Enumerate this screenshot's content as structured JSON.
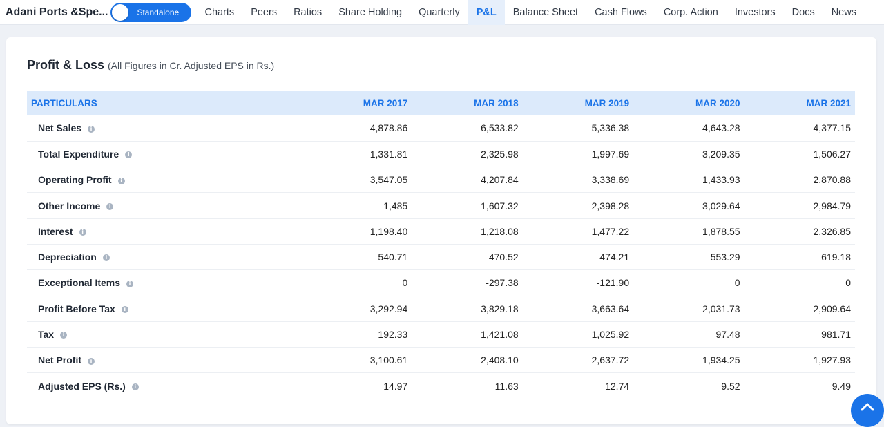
{
  "header": {
    "company": "Adani Ports &Spe...",
    "toggle_label": "Standalone",
    "tabs": [
      "Charts",
      "Peers",
      "Ratios",
      "Share Holding",
      "Quarterly",
      "P&L",
      "Balance Sheet",
      "Cash Flows",
      "Corp. Action",
      "Investors",
      "Docs",
      "News"
    ],
    "active_tab": "P&L"
  },
  "section": {
    "title": "Profit & Loss",
    "subtitle": "(All Figures in Cr. Adjusted EPS in Rs.)"
  },
  "table": {
    "headers": [
      "PARTICULARS",
      "MAR 2017",
      "MAR 2018",
      "MAR 2019",
      "MAR 2020",
      "MAR 2021"
    ],
    "info_icon": "i",
    "rows": [
      {
        "label": "Net Sales",
        "values": [
          "4,878.86",
          "6,533.82",
          "5,336.38",
          "4,643.28",
          "4,377.15"
        ]
      },
      {
        "label": "Total Expenditure",
        "values": [
          "1,331.81",
          "2,325.98",
          "1,997.69",
          "3,209.35",
          "1,506.27"
        ]
      },
      {
        "label": "Operating Profit",
        "values": [
          "3,547.05",
          "4,207.84",
          "3,338.69",
          "1,433.93",
          "2,870.88"
        ]
      },
      {
        "label": "Other Income",
        "values": [
          "1,485",
          "1,607.32",
          "2,398.28",
          "3,029.64",
          "2,984.79"
        ]
      },
      {
        "label": "Interest",
        "values": [
          "1,198.40",
          "1,218.08",
          "1,477.22",
          "1,878.55",
          "2,326.85"
        ]
      },
      {
        "label": "Depreciation",
        "values": [
          "540.71",
          "470.52",
          "474.21",
          "553.29",
          "619.18"
        ]
      },
      {
        "label": "Exceptional Items",
        "values": [
          "0",
          "-297.38",
          "-121.90",
          "0",
          "0"
        ]
      },
      {
        "label": "Profit Before Tax",
        "values": [
          "3,292.94",
          "3,829.18",
          "3,663.64",
          "2,031.73",
          "2,909.64"
        ]
      },
      {
        "label": "Tax",
        "values": [
          "192.33",
          "1,421.08",
          "1,025.92",
          "97.48",
          "981.71"
        ]
      },
      {
        "label": "Net Profit",
        "values": [
          "3,100.61",
          "2,408.10",
          "2,637.72",
          "1,934.25",
          "1,927.93"
        ]
      },
      {
        "label": "Adjusted EPS (Rs.)",
        "values": [
          "14.97",
          "11.63",
          "12.74",
          "9.52",
          "9.49"
        ]
      }
    ]
  },
  "scroll_top_icon": "chevron-up-icon"
}
